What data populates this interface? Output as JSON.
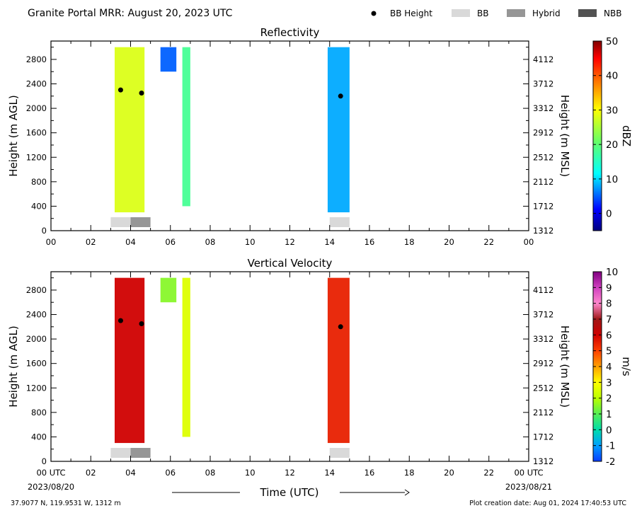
{
  "header": {
    "title": "Granite Portal MRR:  August 20, 2023 UTC",
    "legend": [
      {
        "label": "BB Height",
        "kind": "dot",
        "color": "#000000"
      },
      {
        "label": "BB",
        "kind": "box",
        "color": "#d9d9d9"
      },
      {
        "label": "Hybrid",
        "kind": "box",
        "color": "#969696"
      },
      {
        "label": "NBB",
        "kind": "box",
        "color": "#525252"
      }
    ]
  },
  "footer": {
    "location": "37.9077 N, 119.9531 W, 1312 m",
    "created": "Plot creation date: Aug 01, 2024 17:40:53 UTC",
    "start_date": "2023/08/20",
    "end_date": "2023/08/21",
    "time_label": "Time (UTC)"
  },
  "chart_data": [
    {
      "type": "heatmap",
      "title": "Reflectivity",
      "ylabel": "Height (m AGL)",
      "ylabel_right": "Height (m MSL)",
      "colorbar_label": "dBZ",
      "xlim": [
        0,
        24
      ],
      "ylim": [
        0,
        3100
      ],
      "xticks": [
        "00",
        "02",
        "04",
        "06",
        "08",
        "10",
        "12",
        "14",
        "16",
        "18",
        "20",
        "22",
        "00"
      ],
      "yticks": [
        0,
        400,
        800,
        1200,
        1600,
        2000,
        2400,
        2800
      ],
      "yticks_right": [
        "1312",
        "1712",
        "2112",
        "2512",
        "2912",
        "3312",
        "3712",
        "4112"
      ],
      "colorbar_range": [
        -5,
        50
      ],
      "colorbar_ticks": [
        0,
        10,
        20,
        30,
        40,
        50
      ],
      "colormap": "jet",
      "bright_band": [
        {
          "type": "BB",
          "start": 3.0,
          "end": 4.0
        },
        {
          "type": "Hybrid",
          "start": 4.0,
          "end": 5.0
        },
        {
          "type": "BB",
          "start": 14.0,
          "end": 15.0
        }
      ],
      "bb_height": [
        {
          "time": 3.5,
          "height": 2300
        },
        {
          "time": 4.55,
          "height": 2250
        },
        {
          "time": 14.55,
          "height": 2200
        }
      ],
      "echoes": [
        {
          "start": 3.2,
          "end": 4.7,
          "base": 300,
          "top": 3000,
          "value": 28
        },
        {
          "start": 5.5,
          "end": 6.3,
          "base": 2600,
          "top": 3000,
          "value": 5
        },
        {
          "start": 6.6,
          "end": 7.0,
          "base": 400,
          "top": 3000,
          "value": 18
        },
        {
          "start": 13.9,
          "end": 15.0,
          "base": 300,
          "top": 3000,
          "value": 8
        }
      ]
    },
    {
      "type": "heatmap",
      "title": "Vertical Velocity",
      "ylabel": "Height (m AGL)",
      "ylabel_right": "Height (m MSL)",
      "colorbar_label": "m/s",
      "xlim": [
        0,
        24
      ],
      "ylim": [
        0,
        3100
      ],
      "xticks": [
        "00 UTC",
        "02",
        "04",
        "06",
        "08",
        "10",
        "12",
        "14",
        "16",
        "18",
        "20",
        "22",
        "00 UTC"
      ],
      "yticks": [
        0,
        400,
        800,
        1200,
        1600,
        2000,
        2400,
        2800
      ],
      "yticks_right": [
        "1312",
        "1712",
        "2112",
        "2512",
        "2912",
        "3312",
        "3712",
        "4112"
      ],
      "colorbar_range": [
        -2,
        10
      ],
      "colorbar_ticks": [
        -2,
        -1,
        0,
        1,
        2,
        3,
        4,
        5,
        6,
        7,
        8,
        9,
        10
      ],
      "bright_band": [
        {
          "type": "BB",
          "start": 3.0,
          "end": 4.0
        },
        {
          "type": "Hybrid",
          "start": 4.0,
          "end": 5.0
        },
        {
          "type": "BB",
          "start": 14.0,
          "end": 15.0
        }
      ],
      "bb_height": [
        {
          "time": 3.5,
          "height": 2300
        },
        {
          "time": 4.55,
          "height": 2250
        },
        {
          "time": 14.55,
          "height": 2200
        }
      ],
      "echoes": [
        {
          "start": 3.2,
          "end": 4.7,
          "base": 300,
          "top": 3000,
          "value": 6
        },
        {
          "start": 5.5,
          "end": 6.3,
          "base": 2600,
          "top": 3000,
          "value": 1.5
        },
        {
          "start": 6.6,
          "end": 7.0,
          "base": 400,
          "top": 3000,
          "value": 2.5
        },
        {
          "start": 13.9,
          "end": 15.0,
          "base": 300,
          "top": 3000,
          "value": 5.5
        }
      ]
    }
  ]
}
